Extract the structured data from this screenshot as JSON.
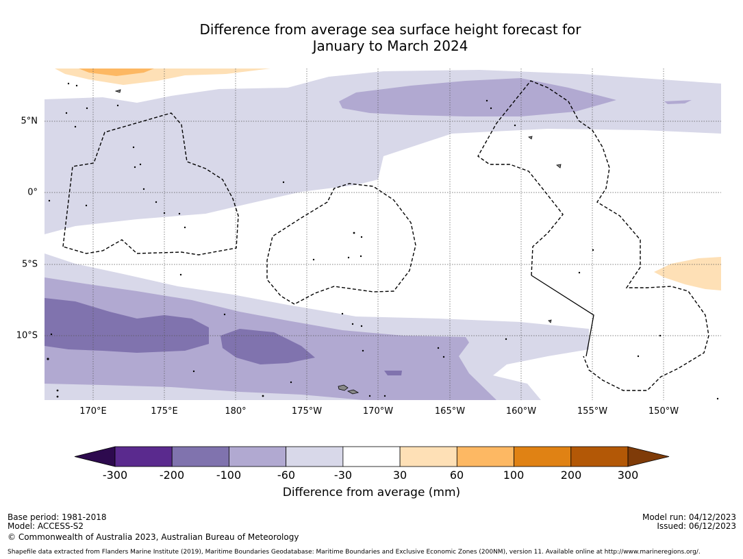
{
  "title": {
    "line1": "Difference from average sea surface height forecast for",
    "line2": "January to March 2024"
  },
  "map": {
    "longitude_labels": [
      "170°E",
      "175°E",
      "180°",
      "175°W",
      "170°W",
      "165°W",
      "160°W",
      "155°W",
      "150°W"
    ],
    "latitude_labels": [
      "5°N",
      "0°",
      "5°S",
      "10°S"
    ]
  },
  "legend": {
    "title": "Difference from average (mm)",
    "ticks": [
      "-300",
      "-200",
      "-100",
      "-60",
      "-30",
      "30",
      "60",
      "100",
      "200",
      "300"
    ],
    "colors": [
      "#2d0a4e",
      "#5a2a8e",
      "#8073ae",
      "#b1a9d1",
      "#d8d8e9",
      "#ffffff",
      "#fee0b6",
      "#fdb863",
      "#e08214",
      "#b35806",
      "#7f3b08"
    ]
  },
  "footer": {
    "base_period": "Base period: 1981-2018",
    "model": "Model: ACCESS-S2",
    "copyright": "© Commonwealth of Australia 2023, Australian Bureau of Meteorology",
    "model_run": "Model run: 04/12/2023",
    "issued": "Issued: 06/12/2023",
    "shapefile": "Shapefile data extracted from Flanders Marine Institute (2019), Maritime Boundaries Geodatabase: Maritime Boundaries and Exclusive Economic Zones (200NM), version 11. Available online at http://www.marineregions.org/."
  }
}
